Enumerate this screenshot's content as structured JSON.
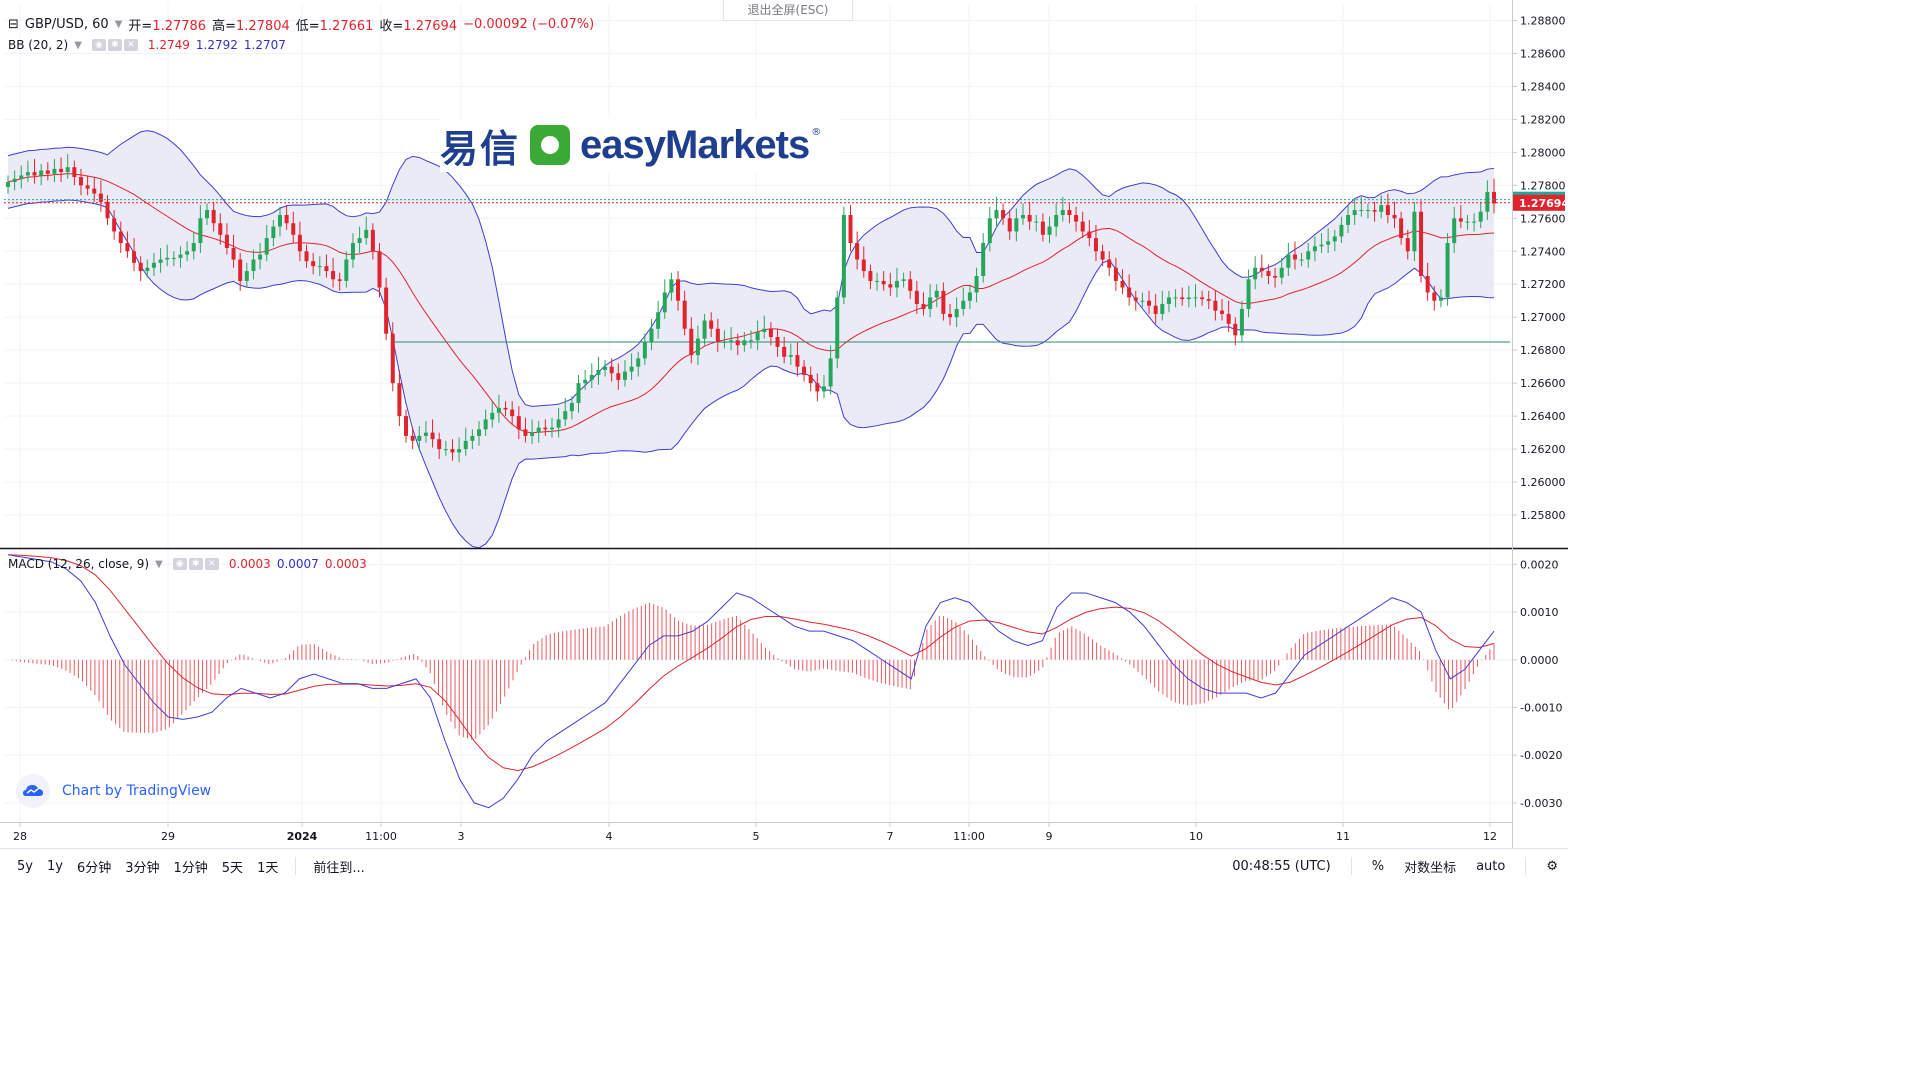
{
  "header": {
    "symbol_line": "GBP/USD, 60",
    "open_label": "开=",
    "open_value": "1.27786",
    "high_label": "高=",
    "high_value": "1.27804",
    "low_label": "低=",
    "low_value": "1.27661",
    "close_label": "收=",
    "close_value": "1.27694",
    "change": "−0.00092 (−0.07%)",
    "exit_fullscreen": "退出全屏(ESC)"
  },
  "bb_legend": {
    "name": "BB (20, 2)",
    "basis": "1.2749",
    "upper": "1.2792",
    "lower": "1.2707"
  },
  "macd_legend": {
    "name": "MACD (12, 26, close, 9)",
    "hist": "0.0003",
    "macd": "0.0007",
    "signal": "0.0003"
  },
  "logo": {
    "cn": "易信",
    "en": "easyMarkets",
    "reg": "®"
  },
  "brand": {
    "text": "Chart by TradingView"
  },
  "bottom_bar": {
    "timeframes": [
      "5y",
      "1y",
      "6分钟",
      "3分钟",
      "1分钟",
      "5天",
      "1天"
    ],
    "goto": "前往到...",
    "time": "00:48:55 (UTC)",
    "percent": "%",
    "log": "对数坐标",
    "auto": "auto"
  },
  "colors": {
    "up": "#26a65b",
    "down": "#e0242d",
    "band": "#3d3dd6",
    "basis": "#e0242d",
    "band_fill": "#e6e6f5",
    "hline": "#2a8a6a"
  },
  "chart_data": [
    {
      "type": "candlestick",
      "symbol": "GBP/USD",
      "interval": "60",
      "ylim": [
        1.256,
        1.289
      ],
      "price_ticks": [
        "1.28800",
        "1.28600",
        "1.28400",
        "1.28200",
        "1.28000",
        "1.27800",
        "1.27600",
        "1.27400",
        "1.27200",
        "1.27000",
        "1.26800",
        "1.26600",
        "1.26400",
        "1.26200",
        "1.26000",
        "1.25800"
      ],
      "x_ticks": [
        "28",
        "29",
        "2024",
        "11:00",
        "3",
        "4",
        "5",
        "7",
        "11:00",
        "9",
        "10",
        "11",
        "12"
      ],
      "last_price": "1.27694",
      "mark_price": "1.27713",
      "horizontal_line": 1.2685,
      "close_series": [
        1.2782,
        1.2784,
        1.2786,
        1.2788,
        1.2786,
        1.2789,
        1.2787,
        1.279,
        1.2788,
        1.2791,
        1.2785,
        1.278,
        1.2778,
        1.2775,
        1.277,
        1.276,
        1.2752,
        1.2745,
        1.274,
        1.2733,
        1.2728,
        1.273,
        1.2733,
        1.2735,
        1.2736,
        1.2736,
        1.2738,
        1.274,
        1.2745,
        1.276,
        1.2765,
        1.2757,
        1.275,
        1.2742,
        1.2735,
        1.2722,
        1.2728,
        1.2735,
        1.2738,
        1.2748,
        1.2755,
        1.2762,
        1.2757,
        1.275,
        1.274,
        1.2734,
        1.2731,
        1.2731,
        1.2728,
        1.2723,
        1.2722,
        1.2735,
        1.2745,
        1.2748,
        1.2753,
        1.274,
        1.2718,
        1.269,
        1.266,
        1.264,
        1.2628,
        1.2625,
        1.2628,
        1.263,
        1.2626,
        1.262,
        1.262,
        1.2618,
        1.262,
        1.2625,
        1.2628,
        1.2632,
        1.2638,
        1.2642,
        1.2645,
        1.2644,
        1.264,
        1.2632,
        1.2628,
        1.263,
        1.2633,
        1.2632,
        1.2633,
        1.2638,
        1.2643,
        1.2648,
        1.266,
        1.2662,
        1.2665,
        1.2668,
        1.267,
        1.2666,
        1.2662,
        1.2667,
        1.267,
        1.2675,
        1.2685,
        1.2693,
        1.2703,
        1.2715,
        1.2723,
        1.271,
        1.2693,
        1.2677,
        1.2687,
        1.2698,
        1.2693,
        1.2685,
        1.2685,
        1.2686,
        1.2683,
        1.2686,
        1.2686,
        1.2691,
        1.2693,
        1.2688,
        1.2682,
        1.2676,
        1.2677,
        1.267,
        1.2665,
        1.266,
        1.2655,
        1.2658,
        1.2675,
        1.2712,
        1.2762,
        1.2745,
        1.2735,
        1.2728,
        1.2722,
        1.2722,
        1.272,
        1.2718,
        1.2722,
        1.2723,
        1.2716,
        1.2708,
        1.2705,
        1.2712,
        1.2716,
        1.2702,
        1.27,
        1.2705,
        1.271,
        1.2715,
        1.2725,
        1.2745,
        1.276,
        1.2765,
        1.276,
        1.2752,
        1.276,
        1.2762,
        1.2758,
        1.2758,
        1.275,
        1.2755,
        1.2762,
        1.2765,
        1.2762,
        1.2758,
        1.2752,
        1.2748,
        1.274,
        1.2735,
        1.273,
        1.2722,
        1.2718,
        1.2712,
        1.271,
        1.271,
        1.2707,
        1.2702,
        1.2708,
        1.2712,
        1.2712,
        1.2711,
        1.2712,
        1.2712,
        1.2711,
        1.271,
        1.2704,
        1.2702,
        1.2696,
        1.2689,
        1.2705,
        1.2723,
        1.273,
        1.2728,
        1.2725,
        1.2724,
        1.273,
        1.2738,
        1.2735,
        1.2735,
        1.274,
        1.2743,
        1.2744,
        1.2746,
        1.2749,
        1.2756,
        1.2762,
        1.2765,
        1.2765,
        1.2765,
        1.2764,
        1.2768,
        1.2762,
        1.276,
        1.2748,
        1.274,
        1.2764,
        1.2725,
        1.2715,
        1.271,
        1.2712,
        1.2745,
        1.276,
        1.2758,
        1.2758,
        1.2758,
        1.2764,
        1.2776,
        1.2769
      ]
    },
    {
      "type": "macd",
      "params": "12, 26, close, 9",
      "ylim": [
        -0.0034,
        0.0023
      ],
      "y_ticks": [
        "0.0020",
        "0.0010",
        "0.0000",
        "-0.0010",
        "-0.0020",
        "-0.0030"
      ],
      "macd": [
        0.0022,
        0.00215,
        0.0021,
        0.00205,
        0.0019,
        0.00165,
        0.0012,
        0.0005,
        -0.0001,
        -0.0005,
        -0.0009,
        -0.0012,
        -0.00125,
        -0.0012,
        -0.0011,
        -0.0008,
        -0.0006,
        -0.0007,
        -0.0008,
        -0.0007,
        -0.0004,
        -0.0003,
        -0.0004,
        -0.0005,
        -0.0005,
        -0.0006,
        -0.0006,
        -0.0005,
        -0.0004,
        -0.0008,
        -0.0017,
        -0.0025,
        -0.003,
        -0.0031,
        -0.0029,
        -0.0025,
        -0.002,
        -0.0017,
        -0.0015,
        -0.0013,
        -0.0011,
        -0.0009,
        -0.0005,
        -0.0001,
        0.0003,
        0.0005,
        0.0005,
        0.0006,
        0.0008,
        0.0011,
        0.0014,
        0.0013,
        0.0011,
        0.0009,
        0.0007,
        0.0006,
        0.0006,
        0.0005,
        0.0004,
        0.0002,
        0.0,
        -0.0002,
        -0.0004,
        0.0007,
        0.0012,
        0.0013,
        0.0012,
        0.0009,
        0.0006,
        0.0004,
        0.0003,
        0.0004,
        0.0011,
        0.0014,
        0.0014,
        0.0013,
        0.0012,
        0.001,
        0.0007,
        0.0003,
        -0.0001,
        -0.0004,
        -0.0006,
        -0.0007,
        -0.0007,
        -0.0007,
        -0.0008,
        -0.0007,
        -0.0003,
        0.0001,
        0.0003,
        0.0005,
        0.0007,
        0.0009,
        0.0011,
        0.0013,
        0.0012,
        0.001,
        0.0002,
        -0.0004,
        -0.0002,
        0.0002,
        0.0006
      ]
    }
  ]
}
